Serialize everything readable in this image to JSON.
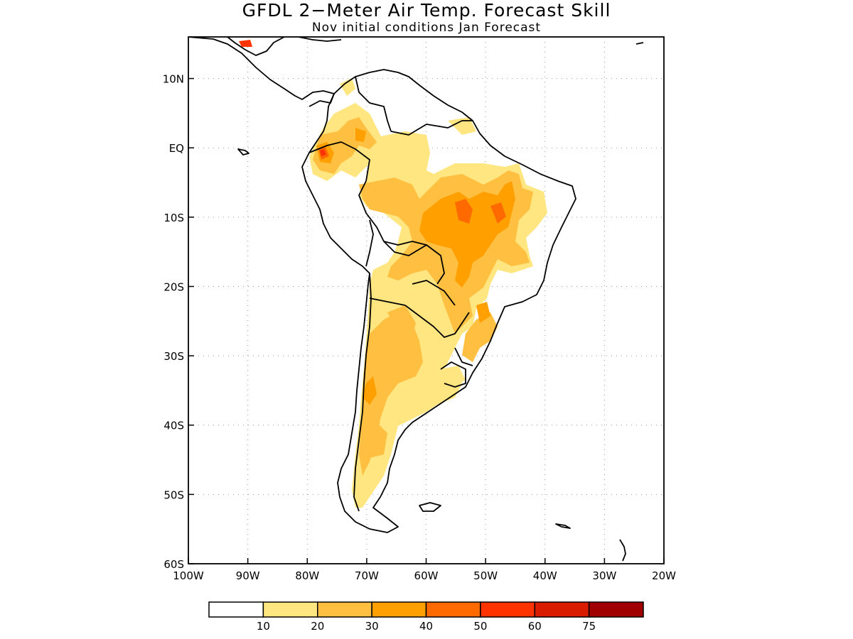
{
  "title": "GFDL 2−Meter Air Temp. Forecast Skill",
  "subtitle": "Nov initial conditions  Jan Forecast",
  "map": {
    "lon_range": [
      -100,
      -20
    ],
    "lat_range": [
      -60,
      16
    ],
    "lon_ticks": [
      {
        "value": -100,
        "label": "100W"
      },
      {
        "value": -90,
        "label": "90W"
      },
      {
        "value": -80,
        "label": "80W"
      },
      {
        "value": -70,
        "label": "70W"
      },
      {
        "value": -60,
        "label": "60W"
      },
      {
        "value": -50,
        "label": "50W"
      },
      {
        "value": -40,
        "label": "40W"
      },
      {
        "value": -30,
        "label": "30W"
      },
      {
        "value": -20,
        "label": "20W"
      }
    ],
    "lat_ticks": [
      {
        "value": 10,
        "label": "10N"
      },
      {
        "value": 0,
        "label": "EQ"
      },
      {
        "value": -10,
        "label": "10S"
      },
      {
        "value": -20,
        "label": "20S"
      },
      {
        "value": -30,
        "label": "30S"
      },
      {
        "value": -40,
        "label": "40S"
      },
      {
        "value": -50,
        "label": "50S"
      },
      {
        "value": -60,
        "label": "60S"
      }
    ],
    "grid": "dotted"
  },
  "legend": {
    "colors": [
      "#ffffff",
      "#ffe680",
      "#ffbf40",
      "#ffa000",
      "#ff6a00",
      "#ff3300",
      "#d91c00",
      "#a00000"
    ],
    "labels": [
      "10",
      "20",
      "30",
      "40",
      "50",
      "60",
      "75"
    ]
  }
}
